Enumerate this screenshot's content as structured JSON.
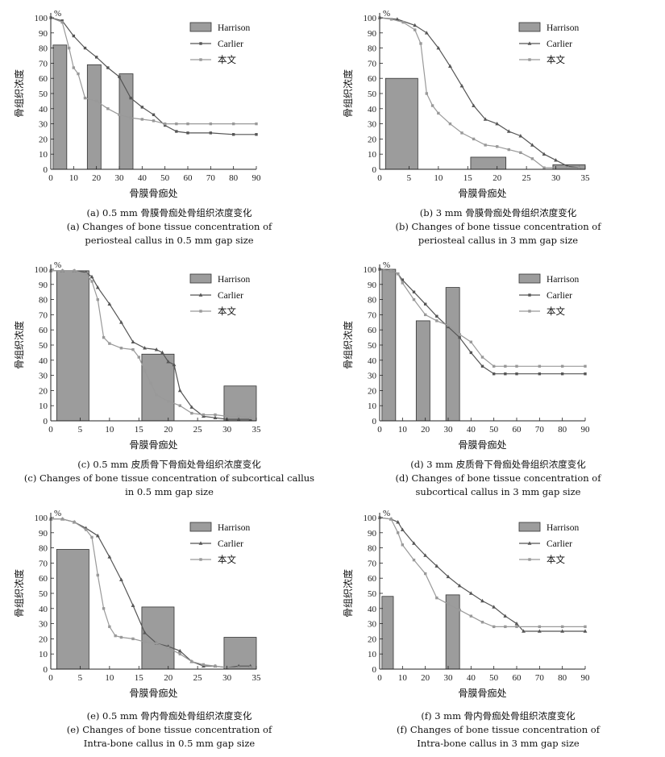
{
  "chart_data": [
    {
      "type": "bar+line",
      "panel": "a",
      "unit_label": "%",
      "xlabel": "骨膜骨痂处",
      "ylabel": "骨组织浓度",
      "xlim": [
        0,
        90
      ],
      "ylim": [
        0,
        100
      ],
      "xticks": [
        0,
        10,
        20,
        30,
        40,
        50,
        60,
        70,
        80,
        90
      ],
      "yticks": [
        0,
        10,
        20,
        30,
        40,
        50,
        60,
        70,
        80,
        90,
        100
      ],
      "legend": [
        "Harrison",
        "Carlier",
        "本文"
      ],
      "legend_position": "top-right",
      "bars": {
        "name": "Harrison",
        "x_ranges": [
          [
            1,
            7
          ],
          [
            16,
            22
          ],
          [
            30,
            36
          ]
        ],
        "values": [
          82,
          69,
          63
        ]
      },
      "series": [
        {
          "name": "Carlier",
          "marker": "square",
          "color": "#555555",
          "x": [
            0,
            5,
            10,
            15,
            20,
            25,
            30,
            35,
            40,
            45,
            50,
            55,
            60,
            70,
            80,
            90
          ],
          "y": [
            100,
            98,
            88,
            80,
            74,
            67,
            61,
            47,
            41,
            36,
            29,
            25,
            24,
            24,
            23,
            23
          ]
        },
        {
          "name": "本文",
          "marker": "square",
          "color": "#999999",
          "x": [
            0,
            5,
            8,
            10,
            12,
            15,
            20,
            25,
            30,
            35,
            40,
            45,
            50,
            55,
            60,
            70,
            80,
            90
          ],
          "y": [
            100,
            97,
            80,
            67,
            63,
            47,
            45,
            40,
            36,
            34,
            33,
            32,
            30,
            30,
            30,
            30,
            30,
            30
          ]
        }
      ],
      "caption_cn": "(a) 0.5 mm 骨膜骨痂处骨组织浓度变化",
      "caption_en1": "(a) Changes of bone tissue concentration of",
      "caption_en2": "periosteal callus in 0.5 mm gap size"
    },
    {
      "type": "bar+line",
      "panel": "b",
      "unit_label": "%",
      "xlabel": "骨膜骨痂处",
      "ylabel": "骨组织浓度",
      "xlim": [
        0,
        35
      ],
      "ylim": [
        0,
        100
      ],
      "xticks": [
        0,
        5,
        10,
        15,
        20,
        25,
        30,
        35
      ],
      "yticks": [
        0,
        10,
        20,
        30,
        40,
        50,
        60,
        70,
        80,
        90,
        100
      ],
      "legend": [
        "Harrison",
        "Carlier",
        "本文"
      ],
      "legend_position": "top-right",
      "bars": {
        "name": "Harrison",
        "x_ranges": [
          [
            1,
            6.5
          ],
          [
            15.5,
            21.5
          ],
          [
            29.5,
            35
          ]
        ],
        "values": [
          60,
          8,
          3
        ]
      },
      "series": [
        {
          "name": "Carlier",
          "marker": "triangle",
          "color": "#555555",
          "x": [
            0,
            3,
            6,
            8,
            10,
            12,
            14,
            16,
            18,
            20,
            22,
            24,
            26,
            28,
            30,
            32,
            34
          ],
          "y": [
            100,
            99,
            95,
            90,
            80,
            68,
            55,
            42,
            33,
            30,
            25,
            22,
            16,
            10,
            6,
            2,
            1
          ]
        },
        {
          "name": "本文",
          "marker": "square",
          "color": "#999999",
          "x": [
            0,
            2,
            4,
            6,
            7,
            8,
            9,
            10,
            12,
            14,
            16,
            18,
            20,
            22,
            24,
            26,
            28,
            30,
            32,
            34
          ],
          "y": [
            100,
            99,
            97,
            92,
            83,
            50,
            42,
            37,
            30,
            24,
            20,
            16,
            15,
            13,
            11,
            7,
            1,
            1,
            1,
            1
          ]
        }
      ],
      "caption_cn": "(b) 3 mm 骨膜骨痂处骨组织浓度变化",
      "caption_en1": "(b) Changes of bone tissue concentration of",
      "caption_en2": "periosteal callus in 3 mm gap size"
    },
    {
      "type": "bar+line",
      "panel": "c",
      "unit_label": "%",
      "xlabel": "骨膜骨痂处",
      "ylabel": "骨组织浓度",
      "xlim": [
        0,
        35
      ],
      "ylim": [
        0,
        100
      ],
      "xticks": [
        0,
        5,
        10,
        15,
        20,
        25,
        30,
        35
      ],
      "yticks": [
        0,
        10,
        20,
        30,
        40,
        50,
        60,
        70,
        80,
        90,
        100
      ],
      "legend": [
        "Harrison",
        "Carlier",
        "本文"
      ],
      "legend_position": "top-right",
      "bars": {
        "name": "Harrison",
        "x_ranges": [
          [
            1,
            6.5
          ],
          [
            15.5,
            21
          ],
          [
            29.5,
            35
          ]
        ],
        "values": [
          99,
          44,
          23
        ]
      },
      "series": [
        {
          "name": "Carlier",
          "marker": "triangle",
          "color": "#555555",
          "x": [
            0,
            2,
            4,
            6,
            7,
            8,
            10,
            12,
            14,
            16,
            18,
            19,
            20,
            21,
            22,
            24,
            26,
            28,
            30,
            32,
            34
          ],
          "y": [
            99,
            99,
            99,
            98,
            95,
            88,
            77,
            65,
            52,
            48,
            47,
            45,
            39,
            37,
            20,
            9,
            3,
            2,
            1,
            1,
            1
          ]
        },
        {
          "name": "本文",
          "marker": "square",
          "color": "#999999",
          "x": [
            0,
            2,
            4,
            6,
            7,
            8,
            9,
            10,
            12,
            14,
            15,
            16,
            17,
            18,
            20,
            22,
            24,
            26,
            28,
            30,
            32,
            34
          ],
          "y": [
            99,
            99,
            99,
            97,
            92,
            80,
            55,
            51,
            48,
            47,
            42,
            33,
            25,
            17,
            13,
            10,
            5,
            4,
            4,
            3,
            3,
            2
          ]
        }
      ],
      "caption_cn": "(c) 0.5 mm 皮质骨下骨痂处骨组织浓度变化",
      "caption_en1": "(c) Changes of bone tissue concentration of subcortical callus",
      "caption_en2": "in 0.5 mm gap size"
    },
    {
      "type": "bar+line",
      "panel": "d",
      "unit_label": "%",
      "xlabel": "骨膜骨痂处",
      "ylabel": "骨组织浓度",
      "xlim": [
        0,
        90
      ],
      "ylim": [
        0,
        100
      ],
      "xticks": [
        0,
        10,
        20,
        30,
        40,
        50,
        60,
        70,
        80,
        90
      ],
      "yticks": [
        0,
        10,
        20,
        30,
        40,
        50,
        60,
        70,
        80,
        90,
        100
      ],
      "legend": [
        "Harrison",
        "Carlier",
        "本文"
      ],
      "legend_position": "top-right",
      "bars": {
        "name": "Harrison",
        "x_ranges": [
          [
            1,
            7
          ],
          [
            16,
            22
          ],
          [
            29,
            35
          ]
        ],
        "values": [
          100,
          66,
          88
        ]
      },
      "series": [
        {
          "name": "Carlier",
          "marker": "square",
          "color": "#555555",
          "x": [
            0,
            5,
            8,
            10,
            15,
            20,
            25,
            30,
            35,
            40,
            45,
            50,
            55,
            60,
            70,
            80,
            90
          ],
          "y": [
            100,
            99,
            97,
            93,
            85,
            77,
            69,
            62,
            55,
            45,
            36,
            31,
            31,
            31,
            31,
            31,
            31
          ]
        },
        {
          "name": "本文",
          "marker": "square",
          "color": "#999999",
          "x": [
            0,
            5,
            8,
            10,
            15,
            20,
            25,
            30,
            35,
            40,
            45,
            50,
            55,
            60,
            70,
            80,
            90
          ],
          "y": [
            100,
            99,
            97,
            91,
            80,
            70,
            66,
            63,
            57,
            52,
            42,
            36,
            36,
            36,
            36,
            36,
            36
          ]
        }
      ],
      "caption_cn": "(d) 3 mm 皮质骨下骨痂处骨组织浓度变化",
      "caption_en1": "(d) Changes of bone tissue concentration of",
      "caption_en2": "subcortical callus in 3 mm gap size"
    },
    {
      "type": "bar+line",
      "panel": "e",
      "unit_label": "%",
      "xlabel": "骨膜骨痂处",
      "ylabel": "骨组织浓度",
      "xlim": [
        0,
        35
      ],
      "ylim": [
        0,
        100
      ],
      "xticks": [
        0,
        5,
        10,
        15,
        20,
        25,
        30,
        35
      ],
      "yticks": [
        0,
        10,
        20,
        30,
        40,
        50,
        60,
        70,
        80,
        90,
        100
      ],
      "legend": [
        "Harrison",
        "Carlier",
        "本文"
      ],
      "legend_position": "top-right",
      "bars": {
        "name": "Harrison",
        "x_ranges": [
          [
            1,
            6.5
          ],
          [
            15.5,
            21
          ],
          [
            29.5,
            35
          ]
        ],
        "values": [
          79,
          41,
          21
        ]
      },
      "series": [
        {
          "name": "Carlier",
          "marker": "triangle",
          "color": "#555555",
          "x": [
            0,
            2,
            4,
            6,
            8,
            10,
            12,
            14,
            16,
            18,
            20,
            22,
            24,
            26,
            28,
            30,
            32,
            34
          ],
          "y": [
            99,
            99,
            97,
            93,
            88,
            74,
            59,
            42,
            24,
            17,
            15,
            12,
            5,
            2,
            2,
            1,
            2,
            2
          ]
        },
        {
          "name": "本文",
          "marker": "square",
          "color": "#999999",
          "x": [
            0,
            2,
            4,
            6,
            7,
            8,
            9,
            10,
            11,
            12,
            14,
            16,
            18,
            20,
            22,
            24,
            26,
            28,
            30,
            32,
            34
          ],
          "y": [
            99,
            99,
            97,
            92,
            87,
            62,
            40,
            28,
            22,
            21,
            20,
            18,
            17,
            14,
            10,
            5,
            3,
            2,
            1,
            1,
            1
          ]
        }
      ],
      "caption_cn": "(e) 0.5 mm 骨内骨痂处骨组织浓度变化",
      "caption_en1": "(e) Changes of bone tissue concentration of",
      "caption_en2": "Intra-bone callus in 0.5 mm gap size"
    },
    {
      "type": "bar+line",
      "panel": "f",
      "unit_label": "%",
      "xlabel": "骨膜骨痂处",
      "ylabel": "骨组织浓度",
      "xlim": [
        0,
        90
      ],
      "ylim": [
        0,
        100
      ],
      "xticks": [
        0,
        10,
        20,
        30,
        40,
        50,
        60,
        70,
        80,
        90
      ],
      "yticks": [
        0,
        10,
        20,
        30,
        40,
        50,
        60,
        70,
        80,
        90,
        100
      ],
      "legend": [
        "Harrison",
        "Carlier",
        "本文"
      ],
      "legend_position": "top-right",
      "bars": {
        "name": "Harrison",
        "x_ranges": [
          [
            1,
            6
          ],
          [
            29,
            35
          ]
        ],
        "values": [
          48,
          49
        ]
      },
      "series": [
        {
          "name": "Carlier",
          "marker": "triangle",
          "color": "#555555",
          "x": [
            0,
            5,
            8,
            10,
            15,
            20,
            25,
            30,
            35,
            40,
            45,
            50,
            55,
            60,
            63,
            70,
            80,
            90
          ],
          "y": [
            100,
            99,
            97,
            92,
            83,
            75,
            68,
            61,
            55,
            50,
            45,
            41,
            35,
            30,
            25,
            25,
            25,
            25
          ]
        },
        {
          "name": "本文",
          "marker": "square",
          "color": "#999999",
          "x": [
            0,
            5,
            8,
            10,
            15,
            20,
            25,
            30,
            35,
            40,
            45,
            50,
            55,
            60,
            70,
            80,
            90
          ],
          "y": [
            100,
            99,
            90,
            82,
            72,
            63,
            47,
            43,
            39,
            35,
            31,
            28,
            28,
            28,
            28,
            28,
            28
          ]
        }
      ],
      "caption_cn": "(f) 3 mm 骨内骨痂处骨组织浓度变化",
      "caption_en1": "(f) Changes of bone tissue concentration of",
      "caption_en2": "Intra-bone callus in 3 mm gap size"
    }
  ]
}
